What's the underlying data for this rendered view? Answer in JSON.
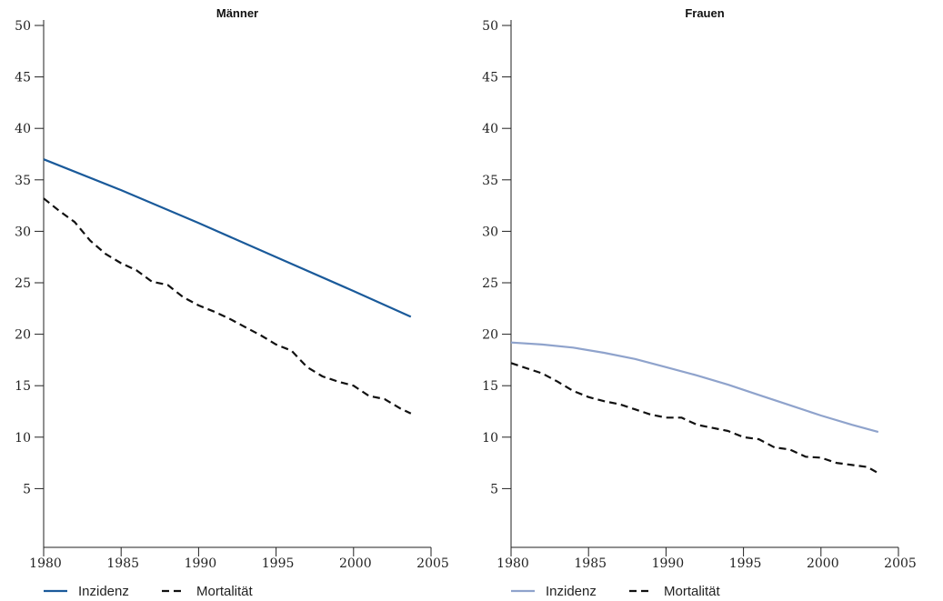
{
  "chart_data": [
    {
      "type": "line",
      "title": "Männer",
      "xlim": [
        1980,
        2005
      ],
      "ylim": [
        0,
        50
      ],
      "xticks": [
        1980,
        1985,
        1990,
        1995,
        2000,
        2005
      ],
      "yticks": [
        5,
        10,
        15,
        20,
        25,
        30,
        35,
        40,
        45,
        50
      ],
      "legend_position": "bottom",
      "series": [
        {
          "name": "Inzidenz",
          "color": "#1a5a9a",
          "style": "solid",
          "x": [
            1980,
            1985,
            1990,
            1995,
            2000,
            2003.7
          ],
          "y": [
            37.0,
            34.0,
            30.8,
            27.5,
            24.2,
            21.7
          ]
        },
        {
          "name": "Mortalität",
          "color": "#111111",
          "style": "dashed",
          "x": [
            1980,
            1981,
            1982,
            1983,
            1984,
            1985,
            1986,
            1987,
            1988,
            1989,
            1990,
            1991,
            1992,
            1993,
            1994,
            1995,
            1996,
            1997,
            1998,
            1999,
            2000,
            2001,
            2002,
            2003,
            2003.7
          ],
          "y": [
            33.2,
            32.0,
            30.9,
            29.1,
            27.8,
            26.9,
            26.2,
            25.1,
            24.8,
            23.6,
            22.8,
            22.2,
            21.5,
            20.7,
            19.9,
            19.0,
            18.4,
            16.8,
            15.9,
            15.4,
            15.0,
            14.0,
            13.7,
            12.8,
            12.3
          ]
        }
      ]
    },
    {
      "type": "line",
      "title": "Frauen",
      "xlim": [
        1980,
        2005
      ],
      "ylim": [
        0,
        50
      ],
      "xticks": [
        1980,
        1985,
        1990,
        1995,
        2000,
        2005
      ],
      "yticks": [
        5,
        10,
        15,
        20,
        25,
        30,
        35,
        40,
        45,
        50
      ],
      "legend_position": "bottom",
      "series": [
        {
          "name": "Inzidenz",
          "color": "#8fa3cc",
          "style": "solid",
          "x": [
            1980,
            1982,
            1984,
            1986,
            1988,
            1990,
            1992,
            1994,
            1996,
            1998,
            2000,
            2002,
            2003.7
          ],
          "y": [
            19.2,
            19.0,
            18.7,
            18.2,
            17.6,
            16.8,
            16.0,
            15.1,
            14.1,
            13.1,
            12.1,
            11.2,
            10.5
          ]
        },
        {
          "name": "Mortalität",
          "color": "#111111",
          "style": "dashed",
          "x": [
            1980,
            1981,
            1982,
            1983,
            1984,
            1985,
            1986,
            1987,
            1988,
            1989,
            1990,
            1991,
            1992,
            1993,
            1994,
            1995,
            1996,
            1997,
            1998,
            1999,
            2000,
            2001,
            2002,
            2003,
            2003.7
          ],
          "y": [
            17.2,
            16.7,
            16.2,
            15.4,
            14.5,
            13.9,
            13.5,
            13.2,
            12.7,
            12.2,
            11.9,
            11.9,
            11.2,
            10.9,
            10.6,
            10.0,
            9.8,
            9.0,
            8.8,
            8.1,
            8.0,
            7.5,
            7.3,
            7.1,
            6.5
          ]
        }
      ]
    }
  ]
}
